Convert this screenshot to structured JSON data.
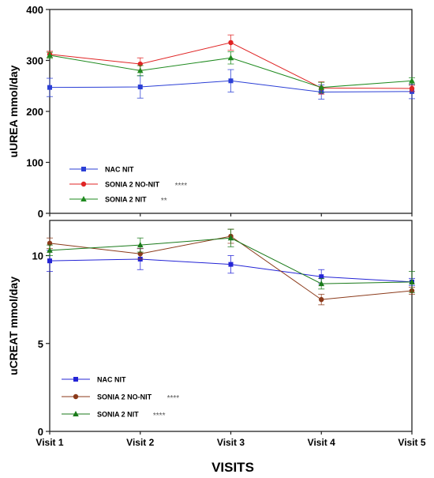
{
  "chart_data": [
    {
      "type": "line",
      "ylabel": "uUREA mmol/day",
      "ylim": [
        0,
        400
      ],
      "yticks": [
        "0",
        "100",
        "200",
        "300",
        "400"
      ],
      "categories": [
        "Visit 1",
        "Visit 2",
        "Visit 3",
        "Visit 4",
        "Visit 5"
      ],
      "legend_position": "bottom-left",
      "series": [
        {
          "name": "NAC NIT",
          "significance": "",
          "marker": "square",
          "color": "#2b3fd6",
          "values": [
            247,
            248,
            260,
            238,
            239
          ],
          "errors": [
            18,
            22,
            22,
            14,
            14
          ]
        },
        {
          "name": "SONIA 2 NO-NIT",
          "significance": "****",
          "marker": "circle",
          "color": "#e02424",
          "values": [
            312,
            293,
            335,
            246,
            245
          ],
          "errors": [
            6,
            12,
            15,
            12,
            6
          ]
        },
        {
          "name": "SONIA 2 NIT",
          "significance": "**",
          "marker": "triangle",
          "color": "#1f8a1f",
          "values": [
            310,
            280,
            305,
            247,
            260
          ],
          "errors": [
            6,
            10,
            12,
            10,
            6
          ]
        }
      ]
    },
    {
      "type": "line",
      "ylabel": "uCREAT mmol/day",
      "xlabel": "VISITS",
      "ylim": [
        0,
        12
      ],
      "yticks": [
        "0",
        "5",
        "10"
      ],
      "categories": [
        "Visit 1",
        "Visit 2",
        "Visit 3",
        "Visit 4",
        "Visit 5"
      ],
      "legend_position": "bottom-left",
      "series": [
        {
          "name": "NAC NIT",
          "significance": "",
          "marker": "square",
          "color": "#2424d6",
          "values": [
            9.7,
            9.8,
            9.5,
            8.8,
            8.5
          ],
          "errors": [
            0.6,
            0.6,
            0.5,
            0.4,
            0.2
          ]
        },
        {
          "name": "SONIA 2 NO-NIT",
          "significance": "****",
          "marker": "circle",
          "color": "#8b3a1a",
          "values": [
            10.7,
            10.1,
            11.1,
            7.5,
            8.0
          ],
          "errors": [
            0.3,
            0.3,
            0.4,
            0.3,
            0.2
          ]
        },
        {
          "name": "SONIA 2 NIT",
          "significance": "****",
          "marker": "triangle",
          "color": "#1a7a1a",
          "values": [
            10.3,
            10.6,
            11.0,
            8.4,
            8.5
          ],
          "errors": [
            0.3,
            0.4,
            0.5,
            0.3,
            0.6
          ]
        }
      ]
    }
  ]
}
